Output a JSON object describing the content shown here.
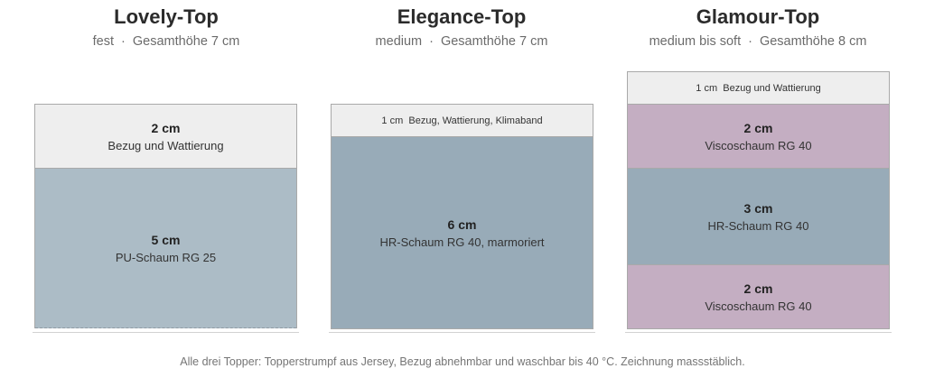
{
  "toppers": [
    {
      "name": "Lovely-Top",
      "firmness": "fest",
      "separator": "·",
      "total_height": "Gesamthöhe 7 cm",
      "layers": [
        {
          "thickness": "2 cm",
          "material": "Bezug und Wattierung",
          "color": "#eeeeee"
        },
        {
          "thickness": "5 cm",
          "material": "PU-Schaum RG 25",
          "color": "#acbcc6"
        }
      ]
    },
    {
      "name": "Elegance-Top",
      "firmness": "medium",
      "separator": "·",
      "total_height": "Gesamthöhe 7 cm",
      "layers": [
        {
          "thickness": "1 cm",
          "material": "Bezug, Wattierung, Klimaband",
          "color": "#eeeeee"
        },
        {
          "thickness": "6 cm",
          "material": "HR-Schaum RG 40, marmoriert",
          "color": "#98abb8"
        }
      ]
    },
    {
      "name": "Glamour-Top",
      "firmness": "medium bis soft",
      "separator": "·",
      "total_height": "Gesamthöhe 8 cm",
      "layers": [
        {
          "thickness": "1 cm",
          "material": "Bezug und Wattierung",
          "color": "#eeeeee"
        },
        {
          "thickness": "2 cm",
          "material": "Viscoschaum RG 40",
          "color": "#c4aec2"
        },
        {
          "thickness": "3 cm",
          "material": "HR-Schaum RG 40",
          "color": "#98abb8"
        },
        {
          "thickness": "2 cm",
          "material": "Viscoschaum RG 40",
          "color": "#c4aec2"
        }
      ]
    }
  ],
  "footnote": "Alle drei Topper: Topperstrumpf aus Jersey, Bezug abnehmbar und waschbar bis 40 °C. Zeichnung massstäblich."
}
